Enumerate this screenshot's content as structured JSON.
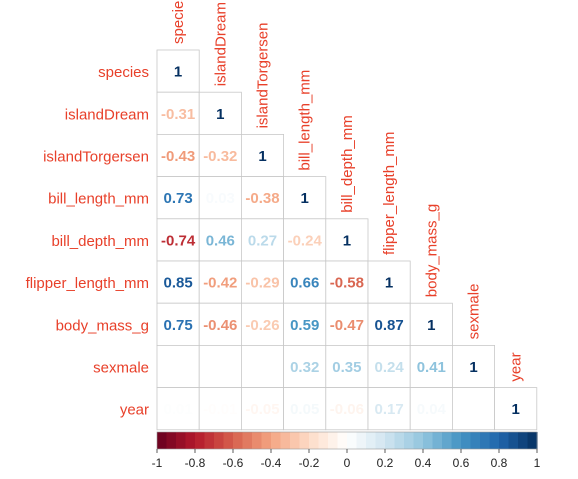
{
  "chart_data": {
    "type": "heatmap",
    "subtype": "correlation-lower-triangle",
    "variables": [
      "species",
      "islandDream",
      "islandTorgersen",
      "bill_length_mm",
      "bill_depth_mm",
      "flipper_length_mm",
      "body_mass_g",
      "sexmale",
      "year"
    ],
    "matrix": [
      [
        1
      ],
      [
        -0.31,
        1
      ],
      [
        -0.43,
        -0.32,
        1
      ],
      [
        0.73,
        0.03,
        -0.38,
        1
      ],
      [
        -0.74,
        0.46,
        0.27,
        -0.24,
        1
      ],
      [
        0.85,
        -0.42,
        -0.29,
        0.66,
        -0.58,
        1
      ],
      [
        0.75,
        -0.46,
        -0.26,
        0.59,
        -0.47,
        0.87,
        1
      ],
      [
        0.0,
        0.0,
        0.0,
        0.32,
        0.35,
        0.24,
        0.41,
        1
      ],
      [
        0.01,
        -0.01,
        -0.05,
        0.05,
        -0.06,
        0.17,
        0.04,
        0.0,
        1
      ]
    ],
    "labels": [
      [
        "1"
      ],
      [
        "-0.31",
        "1"
      ],
      [
        "-0.43",
        "-0.32",
        "1"
      ],
      [
        "0.73",
        "0.03",
        "-0.38",
        "1"
      ],
      [
        "-0.74",
        "0.46",
        "0.27",
        "-0.24",
        "1"
      ],
      [
        "0.85",
        "-0.42",
        "-0.29",
        "0.66",
        "-0.58",
        "1"
      ],
      [
        "0.75",
        "-0.46",
        "-0.26",
        "0.59",
        "-0.47",
        "0.87",
        "1"
      ],
      [
        "",
        "",
        "",
        "0.32",
        "0.35",
        "0.24",
        "0.41",
        "1"
      ],
      [
        "0.01",
        "-0.01",
        "-0.05",
        "0.05",
        "-0.06",
        "0.17",
        "0.04",
        "",
        "1"
      ]
    ],
    "colorbar": {
      "range": [
        -1,
        1
      ],
      "ticks": [
        "-1",
        "-0.8",
        "-0.6",
        "-0.4",
        "-0.2",
        "0",
        "0.2",
        "0.4",
        "0.6",
        "0.8",
        "1"
      ]
    },
    "colors": {
      "label_text": "#e8402a",
      "grid": "#c8c8c8",
      "scale": [
        "#67001f",
        "#b2182b",
        "#d6604d",
        "#f4a582",
        "#fddbc7",
        "#ffffff",
        "#d1e5f0",
        "#92c5de",
        "#4393c3",
        "#2166ac",
        "#053061"
      ]
    }
  }
}
